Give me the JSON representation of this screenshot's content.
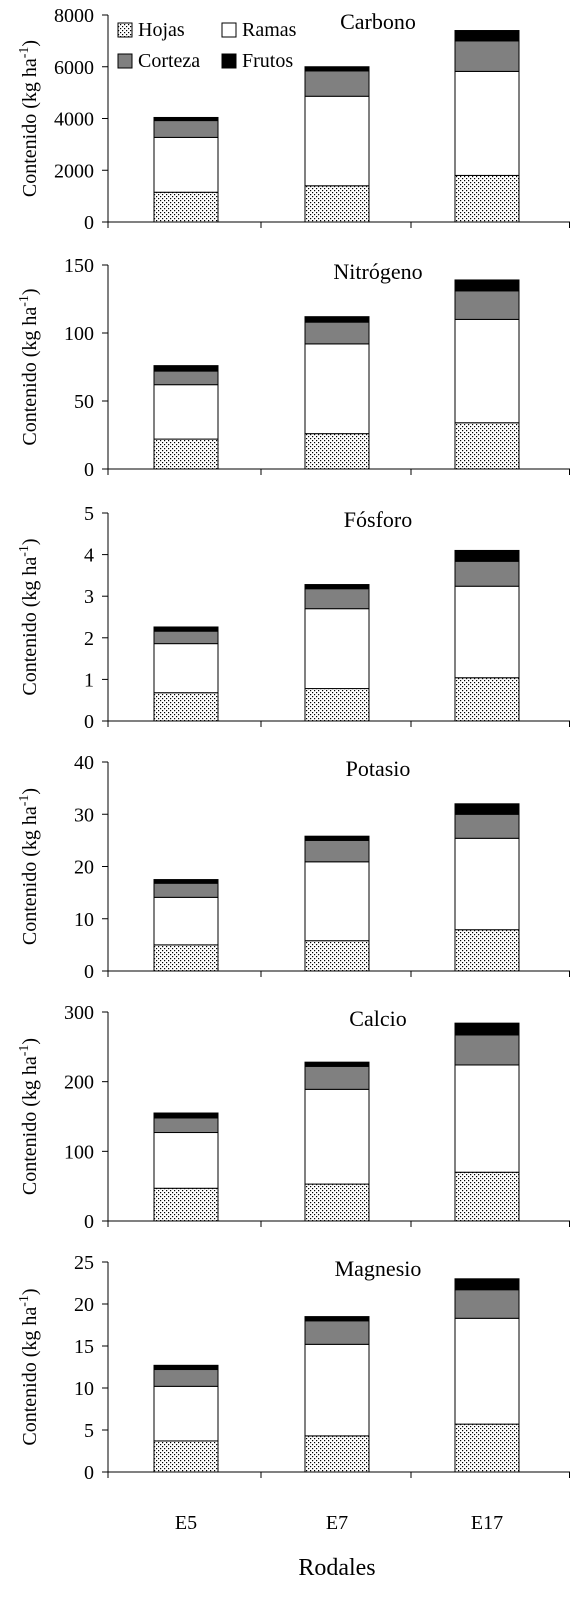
{
  "figure": {
    "xlabel": "Rodales",
    "categories": [
      "E5",
      "E7",
      "E17"
    ]
  },
  "legend": {
    "items": [
      {
        "name": "Hojas",
        "swatch": "dots"
      },
      {
        "name": "Ramas",
        "swatch": "white"
      },
      {
        "name": "Corteza",
        "swatch": "gray"
      },
      {
        "name": "Frutos",
        "swatch": "black"
      }
    ]
  },
  "colors": {
    "Hojas": "#ffffff",
    "Ramas": "#ffffff",
    "Corteza": "#808080",
    "Frutos": "#000000",
    "stroke": "#000000",
    "dots": "#000000"
  },
  "chart_data": [
    {
      "type": "bar",
      "stacked": true,
      "title": "Carbono",
      "ylabel": "Contenido (kg ha-1)",
      "categories": [
        "E5",
        "E7",
        "E17"
      ],
      "ylim": [
        0,
        8000
      ],
      "yticks": [
        0,
        2000,
        4000,
        6000,
        8000
      ],
      "series": [
        {
          "name": "Hojas",
          "values": [
            1150,
            1400,
            1800
          ]
        },
        {
          "name": "Ramas",
          "values": [
            2120,
            3460,
            4020
          ]
        },
        {
          "name": "Corteza",
          "values": [
            650,
            980,
            1180
          ]
        },
        {
          "name": "Frutos",
          "values": [
            120,
            160,
            400
          ]
        }
      ]
    },
    {
      "type": "bar",
      "stacked": true,
      "title": "Nitrógeno",
      "ylabel": "Contenido (kg ha-1)",
      "categories": [
        "E5",
        "E7",
        "E17"
      ],
      "ylim": [
        0,
        150
      ],
      "yticks": [
        0,
        50,
        100,
        150
      ],
      "series": [
        {
          "name": "Hojas",
          "values": [
            22,
            26,
            34
          ]
        },
        {
          "name": "Ramas",
          "values": [
            40,
            66,
            76
          ]
        },
        {
          "name": "Corteza",
          "values": [
            10,
            16,
            21
          ]
        },
        {
          "name": "Frutos",
          "values": [
            4,
            4,
            8
          ]
        }
      ]
    },
    {
      "type": "bar",
      "stacked": true,
      "title": "Fósforo",
      "ylabel": "Contenido (kg ha-1)",
      "categories": [
        "E5",
        "E7",
        "E17"
      ],
      "ylim": [
        0,
        5
      ],
      "yticks": [
        0,
        1,
        2,
        3,
        4,
        5
      ],
      "series": [
        {
          "name": "Hojas",
          "values": [
            0.68,
            0.78,
            1.04
          ]
        },
        {
          "name": "Ramas",
          "values": [
            1.18,
            1.92,
            2.2
          ]
        },
        {
          "name": "Corteza",
          "values": [
            0.3,
            0.48,
            0.6
          ]
        },
        {
          "name": "Frutos",
          "values": [
            0.1,
            0.1,
            0.26
          ]
        }
      ]
    },
    {
      "type": "bar",
      "stacked": true,
      "title": "Potasio",
      "ylabel": "Contenido (kg ha-1)",
      "categories": [
        "E5",
        "E7",
        "E17"
      ],
      "ylim": [
        0,
        40
      ],
      "yticks": [
        0,
        10,
        20,
        30,
        40
      ],
      "series": [
        {
          "name": "Hojas",
          "values": [
            5,
            5.8,
            7.9
          ]
        },
        {
          "name": "Ramas",
          "values": [
            9.1,
            15.1,
            17.5
          ]
        },
        {
          "name": "Corteza",
          "values": [
            2.7,
            4.1,
            4.6
          ]
        },
        {
          "name": "Frutos",
          "values": [
            0.7,
            0.8,
            2
          ]
        }
      ]
    },
    {
      "type": "bar",
      "stacked": true,
      "title": "Calcio",
      "ylabel": "Contenido (kg ha-1)",
      "categories": [
        "E5",
        "E7",
        "E17"
      ],
      "ylim": [
        0,
        300
      ],
      "yticks": [
        0,
        100,
        200,
        300
      ],
      "series": [
        {
          "name": "Hojas",
          "values": [
            47,
            53,
            70
          ]
        },
        {
          "name": "Ramas",
          "values": [
            80,
            136,
            154
          ]
        },
        {
          "name": "Corteza",
          "values": [
            21,
            33,
            43
          ]
        },
        {
          "name": "Frutos",
          "values": [
            7,
            6,
            17
          ]
        }
      ]
    },
    {
      "type": "bar",
      "stacked": true,
      "title": "Magnesio",
      "ylabel": "Contenido (kg ha-1)",
      "categories": [
        "E5",
        "E7",
        "E17"
      ],
      "ylim": [
        0,
        25
      ],
      "yticks": [
        0,
        5,
        10,
        15,
        20,
        25
      ],
      "series": [
        {
          "name": "Hojas",
          "values": [
            3.7,
            4.3,
            5.7
          ]
        },
        {
          "name": "Ramas",
          "values": [
            6.5,
            10.9,
            12.6
          ]
        },
        {
          "name": "Corteza",
          "values": [
            2,
            2.8,
            3.4
          ]
        },
        {
          "name": "Frutos",
          "values": [
            0.5,
            0.5,
            1.3
          ]
        }
      ]
    }
  ]
}
